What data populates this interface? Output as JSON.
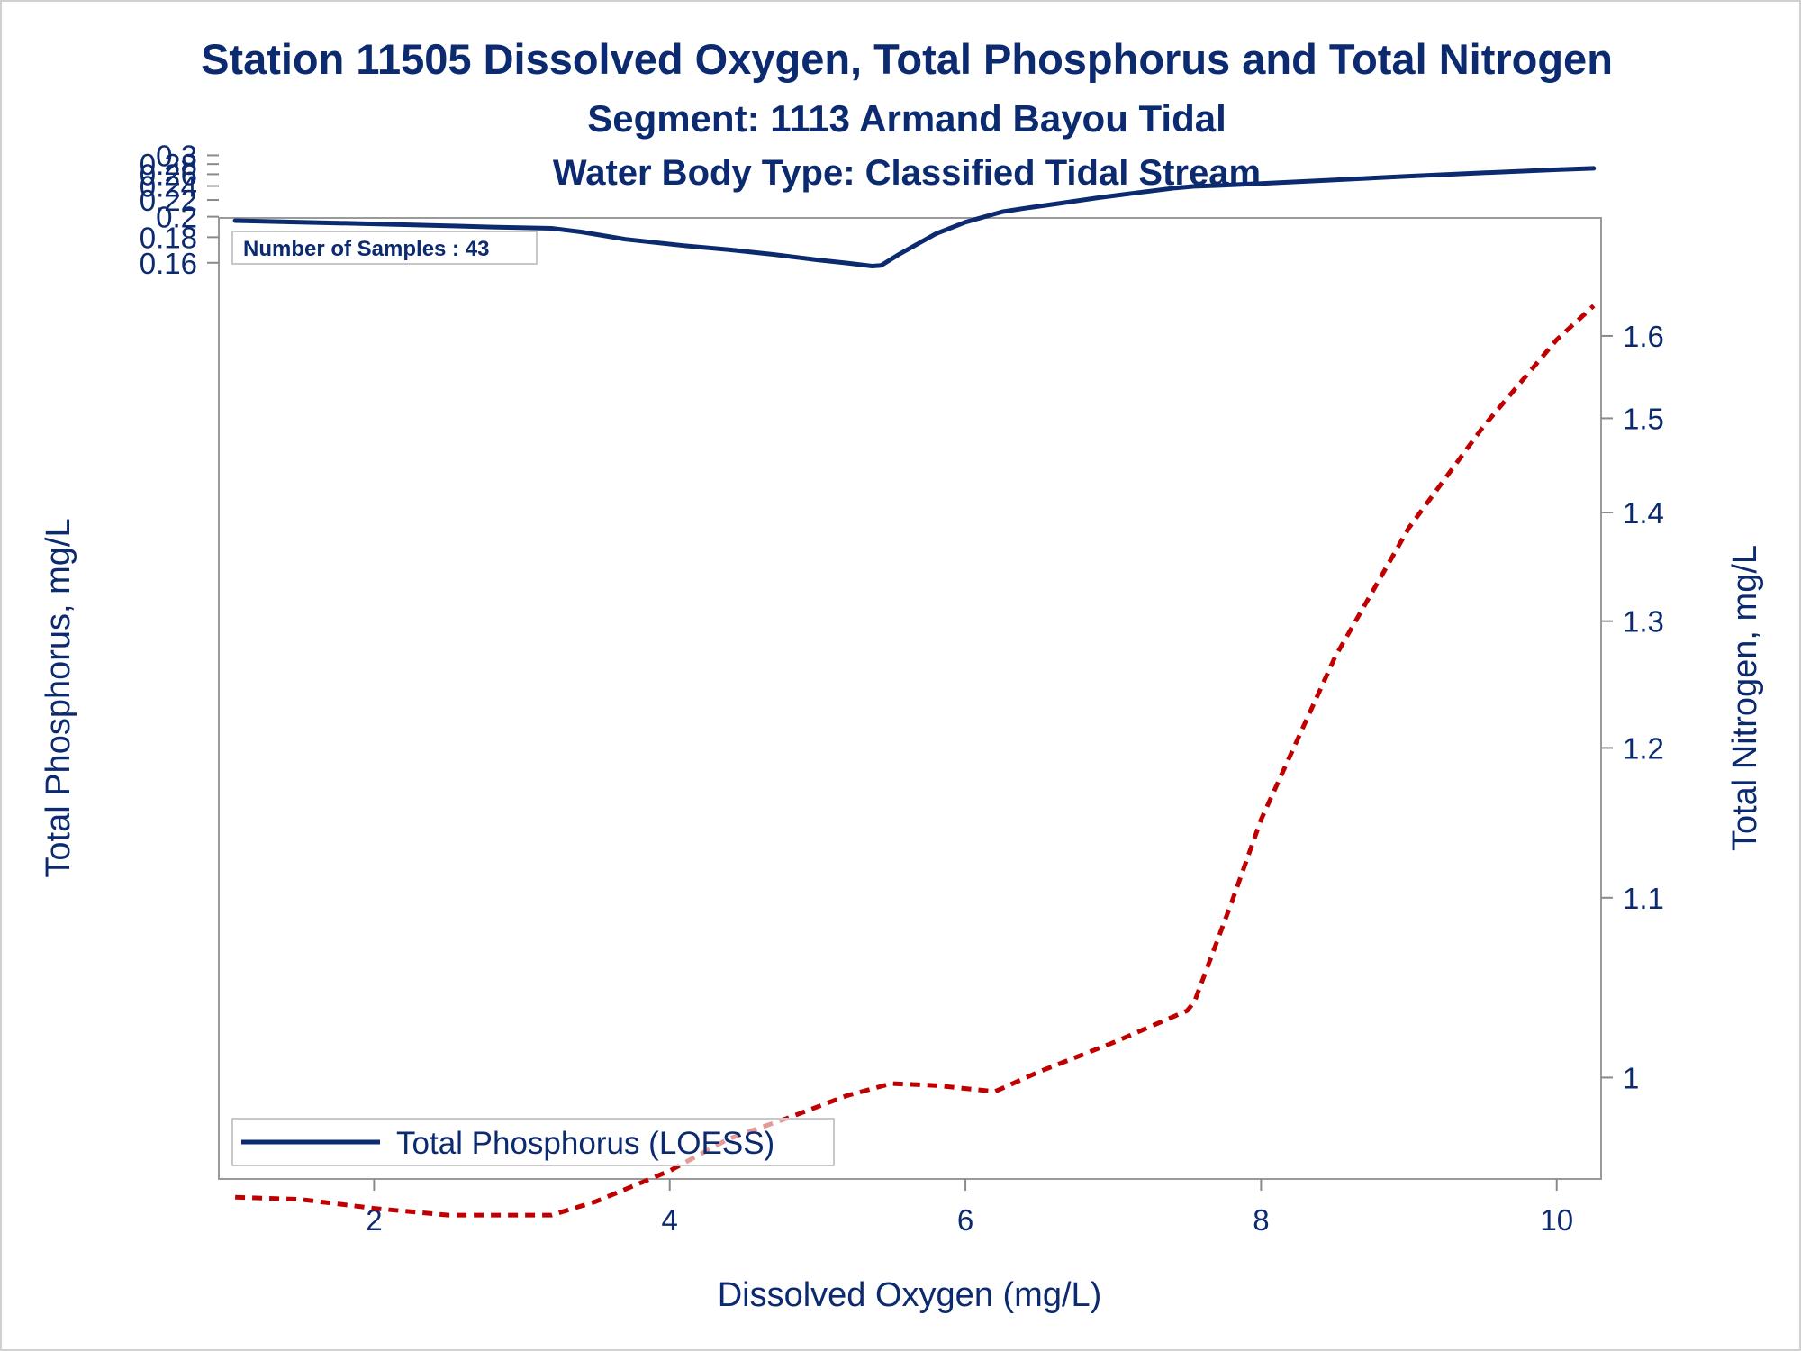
{
  "chart_data": {
    "type": "line",
    "title": "Station 11505  Dissolved Oxygen, Total Phosphorus and Total Nitrogen",
    "subtitle": "Segment: 1113  Armand Bayou Tidal",
    "subtitle2": "Water Body Type: Classified Tidal Stream",
    "xlabel": "Dissolved Oxygen (mg/L)",
    "ylabel": "Total Phosphorus, mg/L",
    "y2label": "Total Nitrogen, mg/L",
    "xlim": [
      0.95,
      10.3
    ],
    "x_ticks": [
      "2",
      "4",
      "6",
      "8",
      "10"
    ],
    "y_ticks": [
      "0.16",
      "0.18",
      "0.2",
      "0.22",
      "0.24",
      "0.26",
      "0.28",
      "0.3"
    ],
    "y2_ticks": [
      "1",
      "1.1",
      "1.2",
      "1.3",
      "1.4",
      "1.5",
      "1.6"
    ],
    "annotation": "Number of Samples : 43",
    "legend": {
      "placement": "bottom-left",
      "entries": [
        "Total Phosphorus (LOESS)"
      ]
    },
    "series": [
      {
        "name": "Total Phosphorus (LOESS)",
        "axis": "left",
        "color": "#0b2a6f",
        "style": "solid",
        "points": [
          [
            1.06,
            0.1958
          ],
          [
            1.5,
            0.1942
          ],
          [
            2.0,
            0.1925
          ],
          [
            2.5,
            0.1906
          ],
          [
            2.8,
            0.1894
          ],
          [
            3.2,
            0.1882
          ],
          [
            3.4,
            0.1848
          ],
          [
            3.7,
            0.1782
          ],
          [
            4.1,
            0.1728
          ],
          [
            4.4,
            0.1696
          ],
          [
            4.7,
            0.166
          ],
          [
            5.0,
            0.162
          ],
          [
            5.2,
            0.1598
          ],
          [
            5.37,
            0.1577
          ],
          [
            5.43,
            0.1582
          ],
          [
            5.55,
            0.166
          ],
          [
            5.8,
            0.183
          ],
          [
            6.0,
            0.1942
          ],
          [
            6.25,
            0.2055
          ],
          [
            6.4,
            0.2095
          ],
          [
            6.65,
            0.216
          ],
          [
            6.9,
            0.223
          ],
          [
            7.2,
            0.231
          ],
          [
            7.42,
            0.237
          ],
          [
            7.55,
            0.2395
          ],
          [
            7.7,
            0.2408
          ],
          [
            8.0,
            0.244
          ],
          [
            8.5,
            0.25
          ],
          [
            9.0,
            0.2565
          ],
          [
            9.5,
            0.2625
          ],
          [
            10.0,
            0.2685
          ],
          [
            10.25,
            0.2712
          ]
        ]
      },
      {
        "axis": "right",
        "color": "#c00000",
        "style": "dashed",
        "points": [
          [
            1.06,
            0.943
          ],
          [
            1.5,
            0.942
          ],
          [
            2.0,
            0.938
          ],
          [
            2.5,
            0.935
          ],
          [
            3.0,
            0.935
          ],
          [
            3.2,
            0.935
          ],
          [
            3.5,
            0.941
          ],
          [
            4.0,
            0.955
          ],
          [
            4.4,
            0.97
          ],
          [
            4.8,
            0.98
          ],
          [
            5.2,
            0.991
          ],
          [
            5.5,
            0.997
          ],
          [
            5.8,
            0.996
          ],
          [
            6.2,
            0.993
          ],
          [
            6.5,
            1.003
          ],
          [
            7.0,
            1.018
          ],
          [
            7.5,
            1.035
          ],
          [
            7.55,
            1.04
          ],
          [
            7.8,
            1.097
          ],
          [
            8.0,
            1.15
          ],
          [
            8.5,
            1.27
          ],
          [
            9.0,
            1.385
          ],
          [
            9.5,
            1.49
          ],
          [
            10.0,
            1.595
          ],
          [
            10.25,
            1.64
          ]
        ]
      }
    ]
  }
}
